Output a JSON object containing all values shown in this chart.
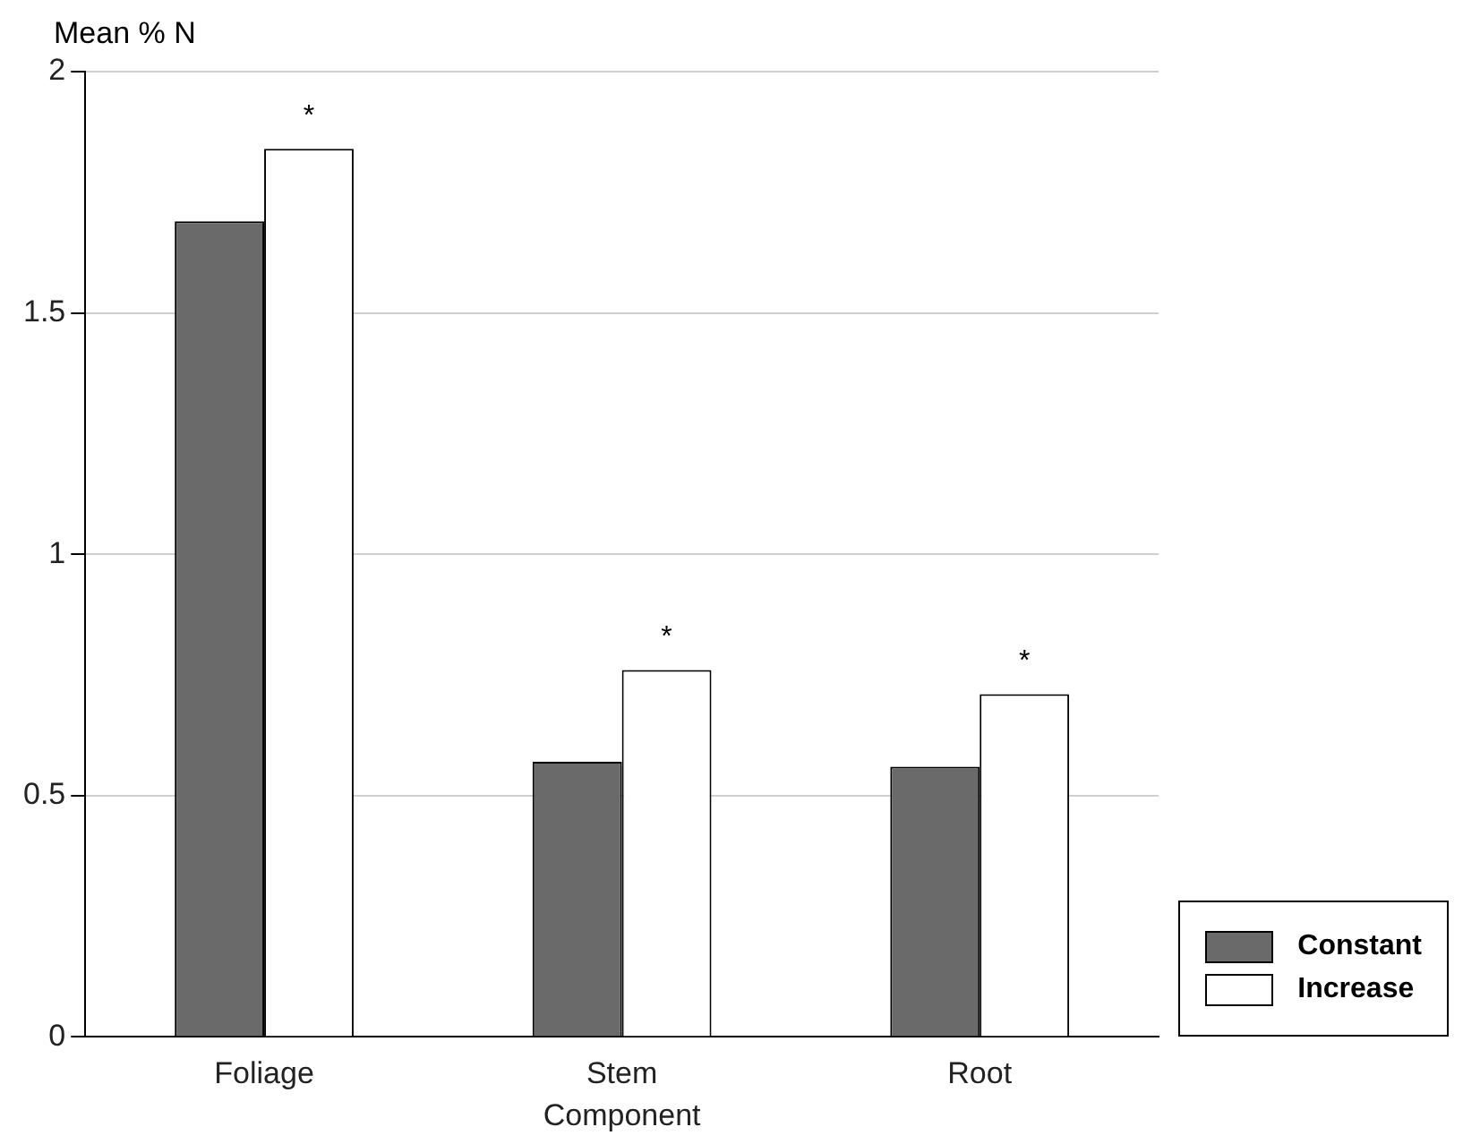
{
  "chart_data": {
    "type": "bar",
    "xlabel": "Component",
    "ylabel": "Mean % N",
    "categories": [
      "Foliage",
      "Stem",
      "Root"
    ],
    "series": [
      {
        "name": "Constant",
        "color": "#6a6a6a",
        "values": [
          1.69,
          0.57,
          0.56
        ]
      },
      {
        "name": "Increase",
        "color": "#ffffff",
        "values": [
          1.84,
          0.76,
          0.71
        ]
      }
    ],
    "ylim": [
      0,
      2
    ],
    "yticks": [
      0,
      0.5,
      1,
      1.5,
      2
    ],
    "grid": "y",
    "legend": "bottom right",
    "annotations": [
      {
        "text": "*",
        "x": "Foliage",
        "y": 1.84
      },
      {
        "text": "*",
        "x": "Stem",
        "y": 0.76
      },
      {
        "text": "*",
        "x": "Root",
        "y": 0.71
      }
    ]
  }
}
